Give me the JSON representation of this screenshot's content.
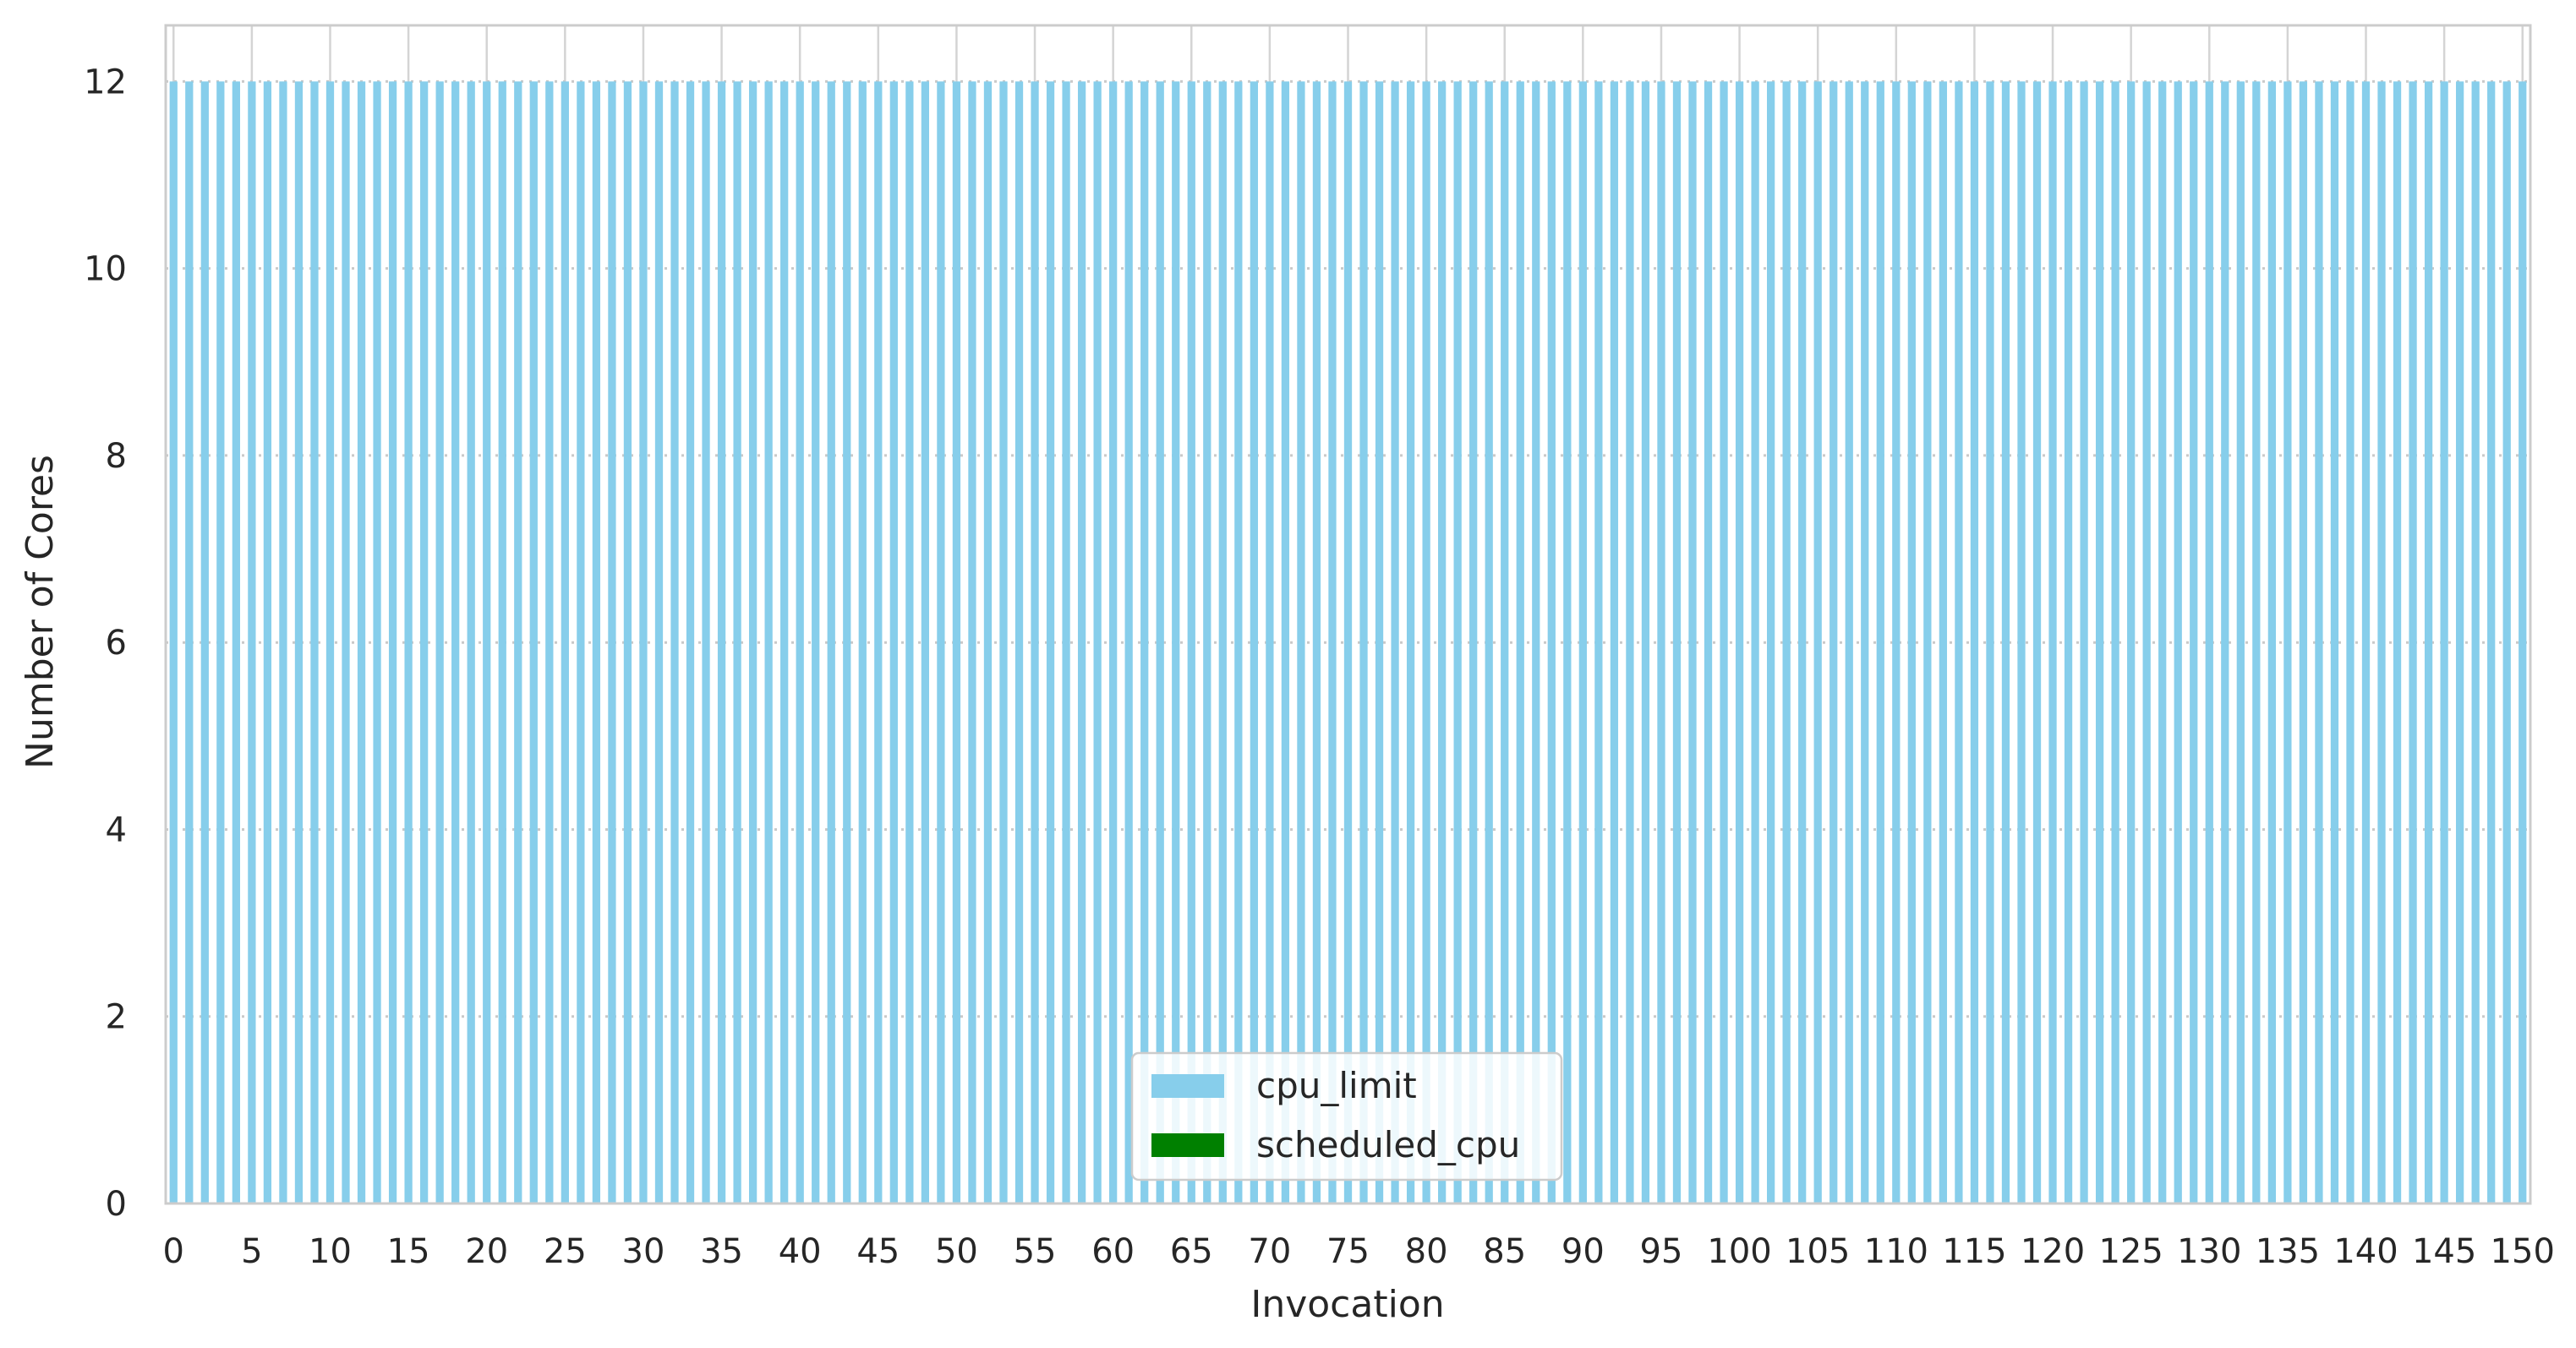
{
  "chart_data": {
    "type": "bar",
    "title": "",
    "xlabel": "Invocation",
    "ylabel": "Number of Cores",
    "x_start": 0,
    "x_end": 150,
    "x_tick_step": 5,
    "ylim": [
      0,
      12.6
    ],
    "y_ticks": [
      0,
      2,
      4,
      6,
      8,
      10,
      12
    ],
    "grid": true,
    "legend_position": "lower center",
    "series": [
      {
        "name": "cpu_limit",
        "color": "#87ceeb",
        "constant_value": 12
      },
      {
        "name": "scheduled_cpu",
        "color": "#008000",
        "constant_value": 0
      }
    ]
  },
  "axes": {
    "xlabel": "Invocation",
    "ylabel": "Number of Cores"
  },
  "legend": {
    "items": [
      {
        "label": "cpu_limit",
        "color": "#87ceeb"
      },
      {
        "label": "scheduled_cpu",
        "color": "#008000"
      }
    ]
  }
}
